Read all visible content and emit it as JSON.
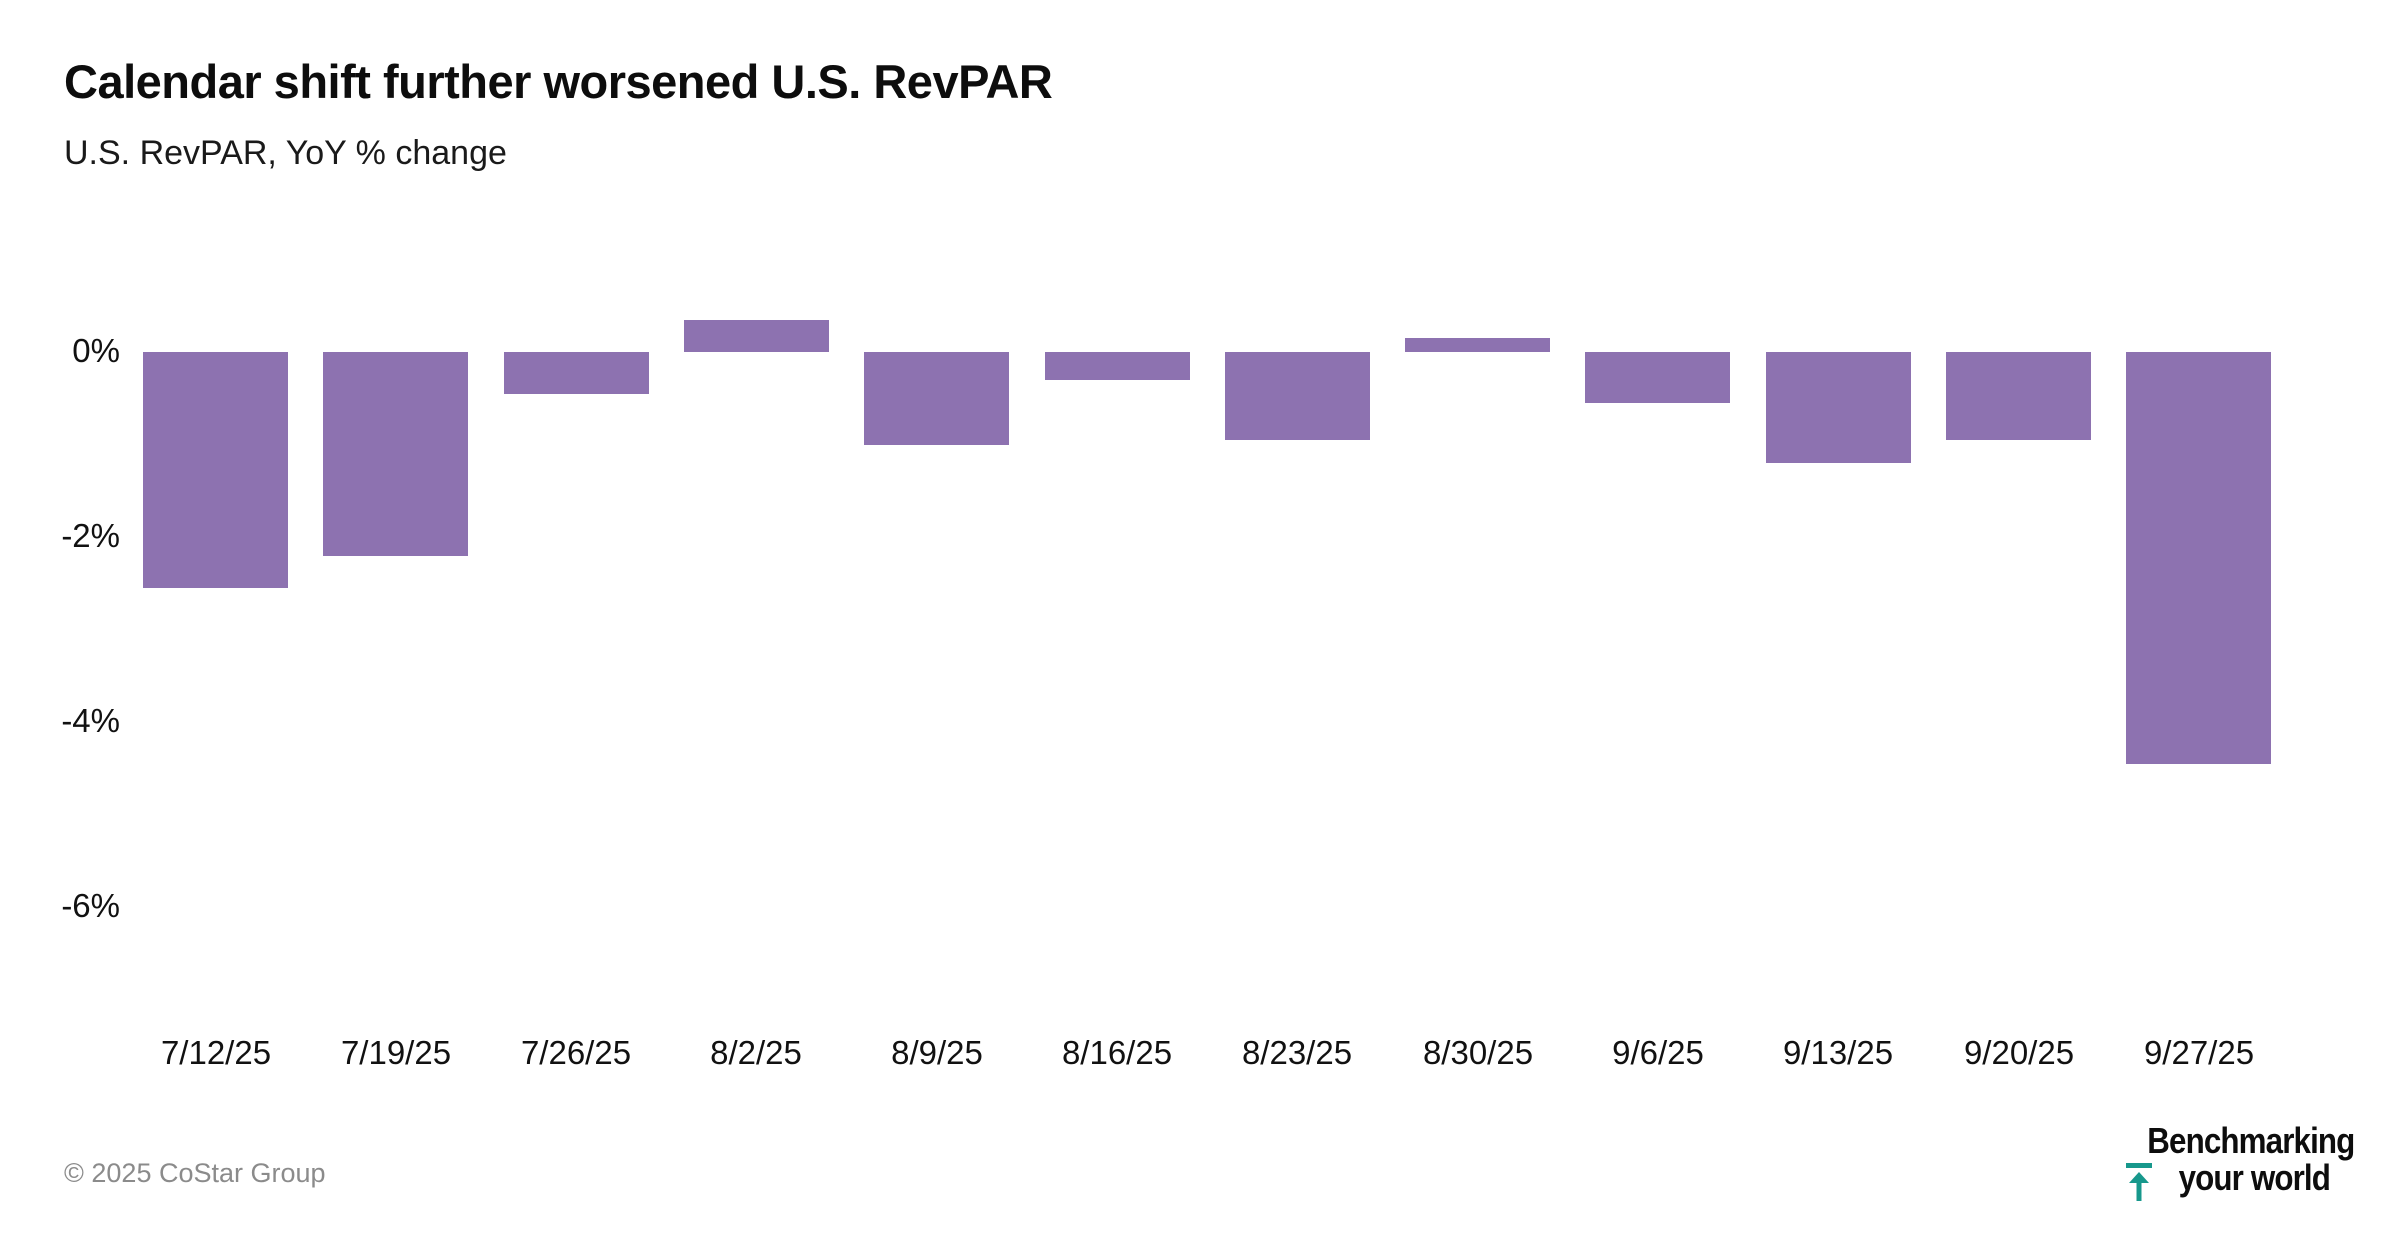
{
  "header": {
    "title": "Calendar shift further worsened U.S. RevPAR",
    "subtitle": "U.S. RevPAR, YoY % change"
  },
  "chart_data": {
    "type": "bar",
    "title": "Calendar shift further worsened U.S. RevPAR",
    "subtitle": "U.S. RevPAR, YoY % change",
    "categories": [
      "7/12/25",
      "7/19/25",
      "7/26/25",
      "8/2/25",
      "8/9/25",
      "8/16/25",
      "8/23/25",
      "8/30/25",
      "9/6/25",
      "9/13/25",
      "9/20/25",
      "9/27/25"
    ],
    "values": [
      -2.55,
      -2.2,
      -0.45,
      0.35,
      -1.0,
      -0.3,
      -0.95,
      0.15,
      -0.55,
      -1.2,
      -0.95,
      -4.45
    ],
    "unit": "%",
    "xlabel": "",
    "ylabel": "",
    "ylim": [
      -6.9,
      0.6
    ],
    "yticks": [
      {
        "value": 0,
        "label": "0%"
      },
      {
        "value": -2,
        "label": "-2%"
      },
      {
        "value": -4,
        "label": "-4%"
      },
      {
        "value": -6,
        "label": "-6%"
      }
    ],
    "grid": false,
    "legend": false,
    "axis_lines": false,
    "bar_color": "#8d72b0"
  },
  "footer": {
    "copyright": "© 2025 CoStar Group",
    "logo": {
      "line1": "Benchmarking",
      "line2": "your world",
      "icon": "benchmark-up-arrow-icon",
      "accent_color": "#17988c"
    }
  }
}
